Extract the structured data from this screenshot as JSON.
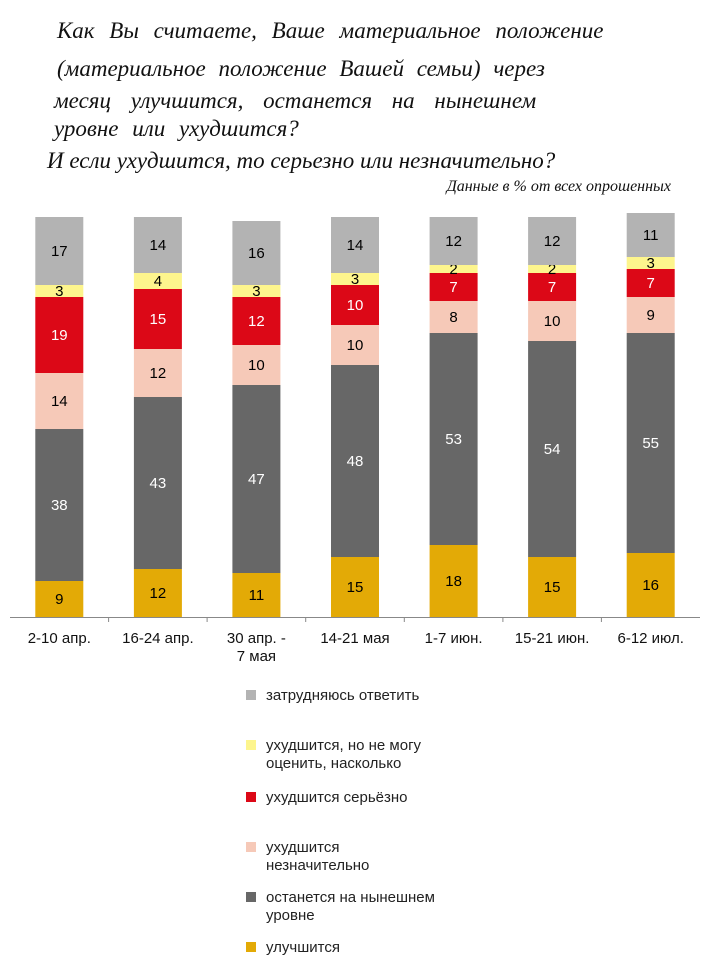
{
  "title_lines": [
    "Как Вы считаете, Ваше материальное положение",
    "(материальное положение Вашей семьи) через",
    "месяц улучшится, останется на нынешнем",
    "уровне или ухудшится?",
    "И если ухудшится, то серьезно или незначительно?"
  ],
  "subtitle": "Данные в % от всех опрошенных",
  "colors": {
    "hard_to_say": "#b3b3b3",
    "worse_unknown": "#fdf58d",
    "worse_serious": "#dc0817",
    "worse_slight": "#f6c9b8",
    "same": "#676767",
    "better": "#e3aa06"
  },
  "chart_data": {
    "type": "bar",
    "stacked": true,
    "categories": [
      [
        "2-10 апр."
      ],
      [
        "16-24 апр."
      ],
      [
        "30 апр. -",
        "7 мая"
      ],
      [
        "14-21 мая"
      ],
      [
        "1-7 июн."
      ],
      [
        "15-21 июн."
      ],
      [
        "6-12 июл."
      ]
    ],
    "ylim": [
      0,
      100
    ],
    "grid": false,
    "legend_position": "bottom",
    "series": [
      {
        "name": "улучшится",
        "color_key": "better",
        "label_color": "#000000",
        "values": [
          9,
          12,
          11,
          15,
          18,
          15,
          16
        ]
      },
      {
        "name": "останется на нынешнем уровне",
        "color_key": "same",
        "label_color": "#ffffff",
        "values": [
          38,
          43,
          47,
          48,
          53,
          54,
          55
        ]
      },
      {
        "name": "ухудшится незначительно",
        "color_key": "worse_slight",
        "label_color": "#000000",
        "values": [
          14,
          12,
          10,
          10,
          8,
          10,
          9
        ]
      },
      {
        "name": "ухудшится серьёзно",
        "color_key": "worse_serious",
        "label_color": "#ffffff",
        "values": [
          19,
          15,
          12,
          10,
          7,
          7,
          7
        ]
      },
      {
        "name": "ухудшится, но не могу оценить, насколько",
        "color_key": "worse_unknown",
        "label_color": "#000000",
        "values": [
          3,
          4,
          3,
          3,
          2,
          2,
          3
        ]
      },
      {
        "name": "затрудняюсь ответить",
        "color_key": "hard_to_say",
        "label_color": "#000000",
        "values": [
          17,
          14,
          16,
          14,
          12,
          12,
          11
        ]
      }
    ]
  },
  "legend": [
    {
      "label_lines": [
        "затрудняюсь ответить"
      ],
      "color_key": "hard_to_say"
    },
    {
      "label_lines": [
        "ухудшится, но не могу",
        "оценить, насколько"
      ],
      "color_key": "worse_unknown"
    },
    {
      "label_lines": [
        "ухудшится серьёзно"
      ],
      "color_key": "worse_serious"
    },
    {
      "label_lines": [
        "ухудшится",
        "незначительно"
      ],
      "color_key": "worse_slight"
    },
    {
      "label_lines": [
        "останется на нынешнем",
        "уровне"
      ],
      "color_key": "same"
    },
    {
      "label_lines": [
        "улучшится"
      ],
      "color_key": "better"
    }
  ]
}
